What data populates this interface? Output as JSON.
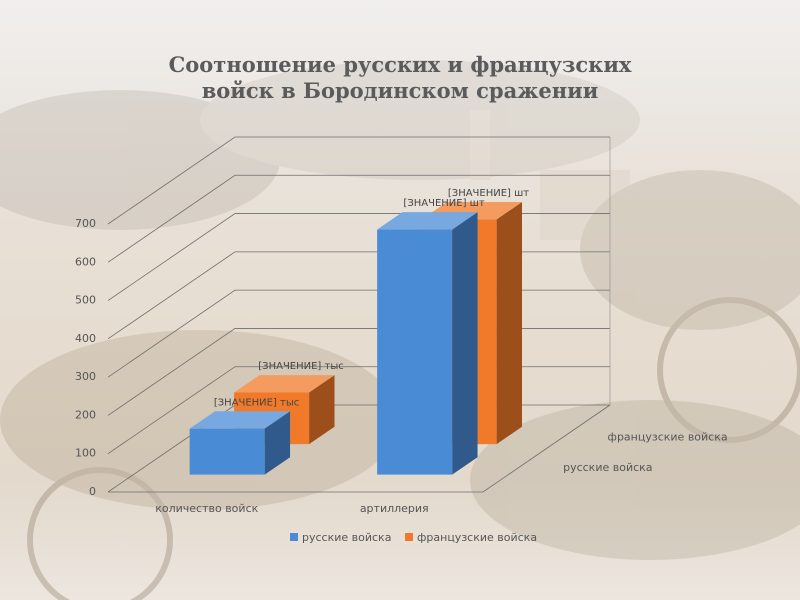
{
  "chart_data": {
    "type": "bar3d",
    "title": "Соотношение русских и французских войск в Бородинском сражении",
    "categories": [
      "количество войск",
      "артиллерия"
    ],
    "series": [
      {
        "name": "русские войска",
        "color": "#4a8bd6",
        "values": [
          120,
          640
        ],
        "value_labels": [
          "[ЗНАЧЕНИЕ] тыс",
          "[ЗНАЧЕНИЕ] шт"
        ]
      },
      {
        "name": "французские войска",
        "color": "#f07a2a",
        "values": [
          135,
          587
        ],
        "value_labels": [
          "[ЗНАЧЕНИЕ] тыс",
          "[ЗНАЧЕНИЕ] шт"
        ]
      }
    ],
    "ylim": [
      0,
      700
    ],
    "yticks": [
      0,
      100,
      200,
      300,
      400,
      500,
      600,
      700
    ],
    "grid": true,
    "legend": "bottom"
  }
}
